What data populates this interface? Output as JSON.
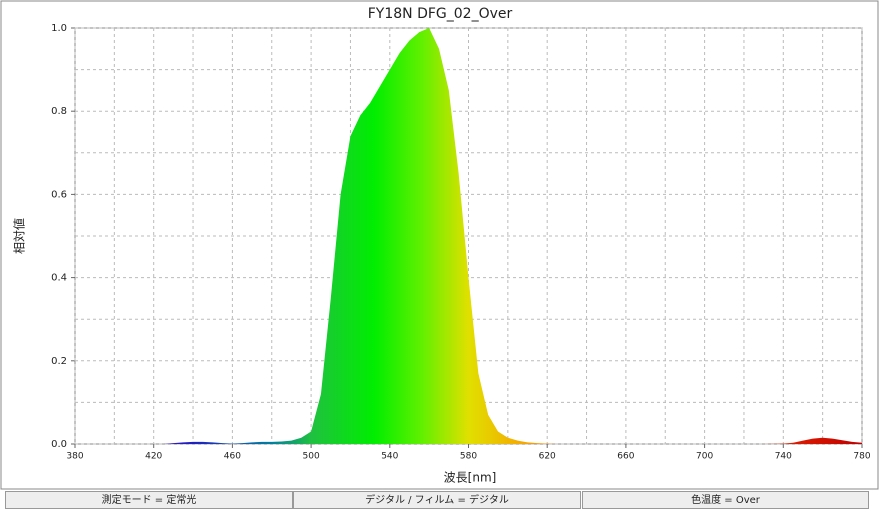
{
  "chart_data": {
    "type": "area",
    "title": "FY18N DFG_02_Over",
    "xlabel": "波長[nm]",
    "ylabel": "相対値",
    "x": [
      380,
      385,
      390,
      395,
      400,
      405,
      410,
      415,
      420,
      425,
      430,
      435,
      440,
      445,
      450,
      455,
      460,
      465,
      470,
      475,
      480,
      485,
      490,
      495,
      500,
      505,
      510,
      515,
      520,
      525,
      530,
      535,
      540,
      545,
      550,
      555,
      560,
      565,
      570,
      575,
      580,
      585,
      590,
      595,
      600,
      605,
      610,
      615,
      620,
      625,
      630,
      640,
      650,
      660,
      670,
      680,
      690,
      700,
      710,
      720,
      730,
      740,
      745,
      750,
      755,
      760,
      765,
      770,
      775,
      780
    ],
    "values": [
      0,
      0,
      0,
      0,
      0,
      0,
      0,
      0,
      0,
      0,
      0.002,
      0.004,
      0.005,
      0.005,
      0.004,
      0.002,
      0.001,
      0.002,
      0.004,
      0.005,
      0.005,
      0.006,
      0.008,
      0.015,
      0.03,
      0.12,
      0.35,
      0.6,
      0.74,
      0.79,
      0.82,
      0.86,
      0.9,
      0.94,
      0.97,
      0.99,
      1.0,
      0.95,
      0.85,
      0.65,
      0.4,
      0.17,
      0.07,
      0.03,
      0.015,
      0.008,
      0.004,
      0.002,
      0.001,
      0,
      0,
      0,
      0,
      0,
      0,
      0,
      0,
      0,
      0,
      0,
      0,
      0.001,
      0.003,
      0.008,
      0.013,
      0.015,
      0.013,
      0.009,
      0.005,
      0.003
    ],
    "xlim": [
      380,
      780
    ],
    "ylim": [
      0,
      1
    ],
    "xticks": [
      380,
      420,
      460,
      500,
      540,
      580,
      620,
      660,
      700,
      740,
      780
    ],
    "yticks": [
      {
        "value": 0,
        "label": "0.0"
      },
      0.2,
      0.4,
      0.6,
      0.8,
      {
        "value": 1,
        "label": "1.0"
      }
    ],
    "grid": true
  },
  "status_bar": [
    "測定モード = 定常光",
    "デジタル / フィルム = デジタル",
    "色温度 = Over"
  ]
}
